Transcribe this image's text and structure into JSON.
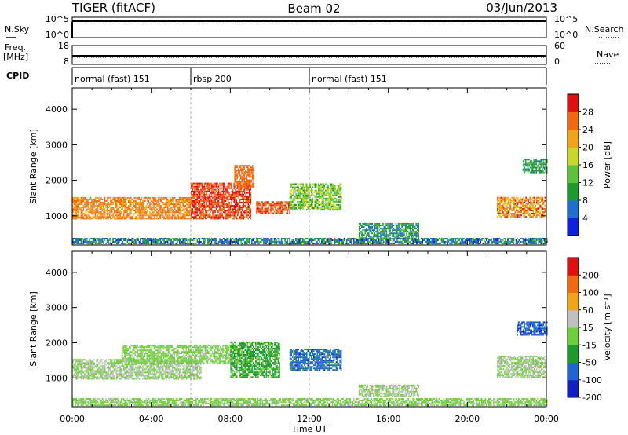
{
  "header": {
    "radar": "TIGER (fitACF)",
    "beam": "Beam 02",
    "date": "03/Jun/2013"
  },
  "top_panels": {
    "nsky_label": "N.Sky",
    "nsky_ticks": [
      "10^5",
      "10^0"
    ],
    "nsearch_label": "N.Search",
    "nsearch_ticks": [
      "10^5",
      "10^0"
    ],
    "freq_label": "Freq.",
    "freq_unit": "[MHz]",
    "freq_ticks": [
      "18",
      "8"
    ],
    "nave_label": "Nave",
    "nave_ticks": [
      "60",
      "0"
    ],
    "cpid_label": "CPID",
    "cpid_segments": [
      {
        "label": "normal (fast) 151",
        "start_hr": 0,
        "end_hr": 6
      },
      {
        "label": "rbsp 200",
        "start_hr": 6,
        "end_hr": 12
      },
      {
        "label": "normal (fast) 151",
        "start_hr": 12,
        "end_hr": 24
      }
    ]
  },
  "chart_data": [
    {
      "type": "heatmap",
      "name": "power-panel",
      "xlabel": "Time UT",
      "ylabel": "Slant Range [km]",
      "x_ticks": [
        "00:00",
        "04:00",
        "08:00",
        "12:00",
        "16:00",
        "20:00",
        "00:00"
      ],
      "xlim_hr": [
        0,
        24
      ],
      "y_ticks": [
        "1000",
        "2000",
        "3000",
        "4000"
      ],
      "ylim_km": [
        180,
        4600
      ],
      "colorbar_label": "Power [dB]",
      "colorbar_ticks": [
        "4",
        "8",
        "12",
        "16",
        "20",
        "24",
        "28"
      ],
      "colorbar_range": [
        0,
        32
      ],
      "colors": [
        "#1020e0",
        "#1e6fd0",
        "#1f9a2e",
        "#5cc23a",
        "#c9d62a",
        "#f2a31c",
        "#f06a14",
        "#e01010"
      ],
      "echo_regions": [
        {
          "t0": 0.0,
          "t1": 6.0,
          "r0": 900,
          "r1": 1500,
          "v0": 22,
          "v1": 26
        },
        {
          "t0": 6.0,
          "t1": 9.0,
          "r0": 900,
          "r1": 1900,
          "v0": 26,
          "v1": 30
        },
        {
          "t0": 8.2,
          "t1": 9.2,
          "r0": 1800,
          "r1": 2400,
          "v0": 24,
          "v1": 28
        },
        {
          "t0": 9.3,
          "t1": 11.0,
          "r0": 1050,
          "r1": 1400,
          "v0": 24,
          "v1": 30
        },
        {
          "t0": 11.0,
          "t1": 13.6,
          "r0": 1150,
          "r1": 1900,
          "v0": 10,
          "v1": 20
        },
        {
          "t0": 14.5,
          "t1": 17.5,
          "r0": 350,
          "r1": 800,
          "v0": 4,
          "v1": 14
        },
        {
          "t0": 0.0,
          "t1": 24.0,
          "r0": 200,
          "r1": 380,
          "v0": 2,
          "v1": 14
        },
        {
          "t0": 21.5,
          "t1": 24.0,
          "r0": 950,
          "r1": 1500,
          "v0": 18,
          "v1": 30
        },
        {
          "t0": 22.8,
          "t1": 24.0,
          "r0": 2200,
          "r1": 2600,
          "v0": 6,
          "v1": 14
        }
      ]
    },
    {
      "type": "heatmap",
      "name": "velocity-panel",
      "xlabel": "Time UT",
      "ylabel": "Slant Range [km]",
      "x_ticks": [
        "00:00",
        "04:00",
        "08:00",
        "12:00",
        "16:00",
        "20:00",
        "00:00"
      ],
      "xlim_hr": [
        0,
        24
      ],
      "y_ticks": [
        "1000",
        "2000",
        "3000",
        "4000"
      ],
      "ylim_km": [
        180,
        4600
      ],
      "colorbar_label": "Velocity [m s⁻¹]",
      "colorbar_ticks": [
        "200",
        "100",
        "50",
        "15",
        "-15",
        "-50",
        "-100",
        "-200"
      ],
      "colorbar_range": [
        -250,
        250
      ],
      "colors": [
        "#1020c0",
        "#2066d0",
        "#1f9a2e",
        "#6fcf3a",
        "#c0c0c0",
        "#f2a31c",
        "#f06a14",
        "#e01010"
      ],
      "echo_regions": [
        {
          "t0": 0.0,
          "t1": 6.5,
          "r0": 950,
          "r1": 1500,
          "v0": -10,
          "v1": 10
        },
        {
          "t0": 2.5,
          "t1": 8.5,
          "r0": 1400,
          "r1": 1900,
          "v0": -30,
          "v1": 10
        },
        {
          "t0": 8.0,
          "t1": 10.5,
          "r0": 1000,
          "r1": 2000,
          "v0": -120,
          "v1": -40
        },
        {
          "t0": 11.0,
          "t1": 13.6,
          "r0": 1200,
          "r1": 1800,
          "v0": -200,
          "v1": -110
        },
        {
          "t0": 14.5,
          "t1": 17.5,
          "r0": 450,
          "r1": 800,
          "v0": -10,
          "v1": 10
        },
        {
          "t0": 0.0,
          "t1": 24.0,
          "r0": 200,
          "r1": 400,
          "v0": -60,
          "v1": 20
        },
        {
          "t0": 21.5,
          "t1": 24.0,
          "r0": 1000,
          "r1": 1600,
          "v0": -10,
          "v1": 10
        },
        {
          "t0": 22.5,
          "t1": 24.0,
          "r0": 2200,
          "r1": 2600,
          "v0": -200,
          "v1": -120
        }
      ]
    }
  ]
}
